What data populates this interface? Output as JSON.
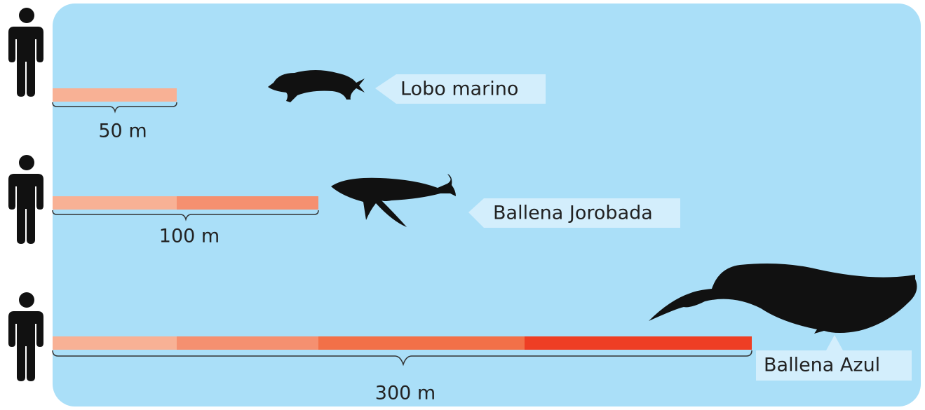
{
  "rows": [
    {
      "animal": "Lobo marino",
      "distance": "50 m"
    },
    {
      "animal": "Ballena Jorobada",
      "distance": "100 m"
    },
    {
      "animal": "Ballena Azul",
      "distance": "300 m"
    }
  ]
}
